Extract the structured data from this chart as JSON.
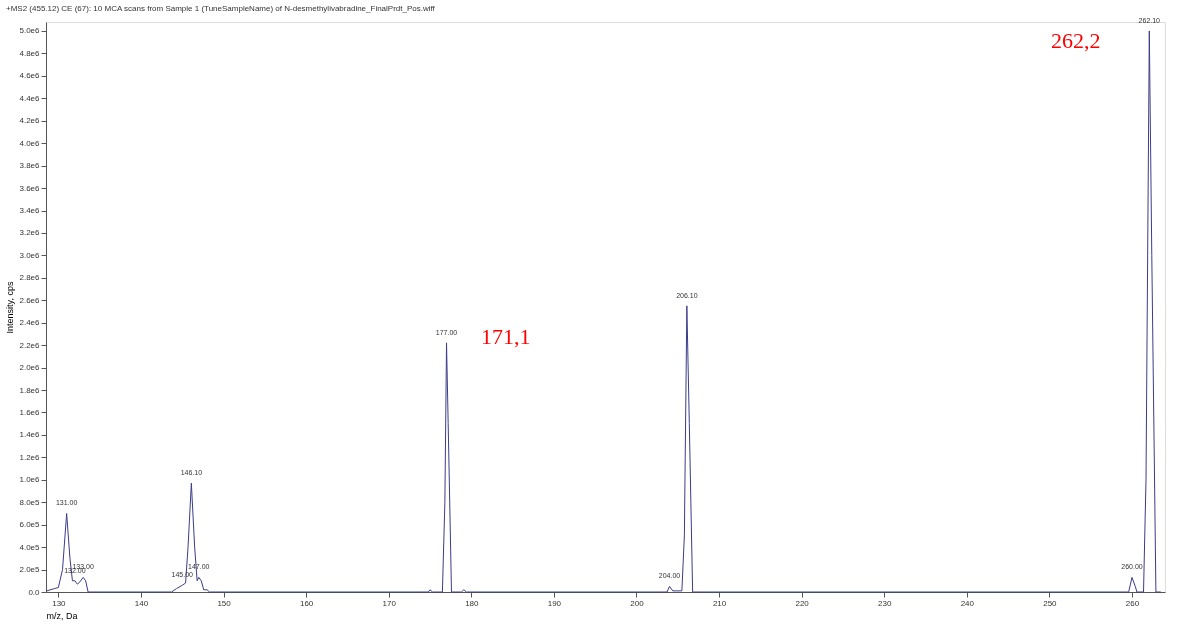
{
  "chart_data": {
    "type": "line",
    "title": "+MS2 (455.12) CE (67): 10 MCA scans from Sample 1 (TuneSampleName) of N-desmethylivabradine_FinalPrdt_Pos.wiff",
    "xlabel": "m/z, Da",
    "ylabel": "Intensity, cps",
    "x": [
      128.6,
      129.5,
      130.0,
      130.5,
      131.0,
      131.4,
      131.7,
      132.0,
      132.3,
      132.6,
      133.0,
      133.3,
      133.6,
      143.7,
      144.3,
      145.0,
      145.4,
      145.7,
      146.1,
      146.5,
      146.8,
      147.0,
      147.3,
      147.6,
      148.0,
      148.3,
      174.8,
      175.0,
      175.3,
      176.5,
      176.8,
      177.0,
      177.2,
      177.6,
      178.8,
      179.1,
      179.4,
      203.7,
      204.0,
      204.4,
      205.5,
      205.8,
      206.1,
      206.4,
      206.8,
      259.6,
      260.0,
      260.4,
      260.6,
      261.4,
      261.7,
      262.1,
      262.4,
      262.9,
      263.5
    ],
    "series": [
      {
        "color": "#3c3c8a",
        "values": [
          10000,
          30000,
          40000,
          200000,
          700000,
          300000,
          100000,
          100000,
          70000,
          90000,
          130000,
          100000,
          0,
          0,
          30000,
          60000,
          80000,
          400000,
          970000,
          400000,
          100000,
          130000,
          100000,
          20000,
          20000,
          0,
          0,
          20000,
          0,
          0,
          800000,
          2220000,
          1500000,
          0,
          0,
          20000,
          0,
          0,
          50000,
          10000,
          10000,
          500000,
          2550000,
          1500000,
          0,
          0,
          130000,
          50000,
          0,
          0,
          1000000,
          5000000,
          3000000,
          0,
          0
        ]
      }
    ],
    "xlim": [
      128.5,
      264
    ],
    "xticks": [
      130,
      140,
      150,
      160,
      170,
      180,
      190,
      200,
      210,
      220,
      230,
      240,
      250,
      260
    ],
    "ylim": [
      0,
      5080000
    ],
    "yticks": [
      {
        "value": 0,
        "label": "0.0"
      },
      {
        "value": 200000,
        "label": "2.0e5"
      },
      {
        "value": 400000,
        "label": "4.0e5"
      },
      {
        "value": 600000,
        "label": "6.0e5"
      },
      {
        "value": 800000,
        "label": "8.0e5"
      },
      {
        "value": 1000000,
        "label": "1.0e6"
      },
      {
        "value": 1200000,
        "label": "1.2e6"
      },
      {
        "value": 1400000,
        "label": "1.4e6"
      },
      {
        "value": 1600000,
        "label": "1.6e6"
      },
      {
        "value": 1800000,
        "label": "1.8e6"
      },
      {
        "value": 2000000,
        "label": "2.0e6"
      },
      {
        "value": 2200000,
        "label": "2.2e6"
      },
      {
        "value": 2400000,
        "label": "2.4e6"
      },
      {
        "value": 2600000,
        "label": "2.6e6"
      },
      {
        "value": 2800000,
        "label": "2.8e6"
      },
      {
        "value": 3000000,
        "label": "3.0e6"
      },
      {
        "value": 3200000,
        "label": "3.2e6"
      },
      {
        "value": 3400000,
        "label": "3.4e6"
      },
      {
        "value": 3600000,
        "label": "3.6e6"
      },
      {
        "value": 3800000,
        "label": "3.8e6"
      },
      {
        "value": 4000000,
        "label": "4.0e6"
      },
      {
        "value": 4200000,
        "label": "4.2e6"
      },
      {
        "value": 4400000,
        "label": "4.4e6"
      },
      {
        "value": 4600000,
        "label": "4.6e6"
      },
      {
        "value": 4800000,
        "label": "4.8e6"
      },
      {
        "value": 5000000,
        "label": "5.0e6"
      }
    ],
    "grid": false,
    "marker": "none",
    "line_style": "solid",
    "annotations": [
      {
        "text": "131.00",
        "x": 131.0,
        "y": 700000
      },
      {
        "text": "132.00",
        "x": 132.0,
        "y": 100000
      },
      {
        "text": "133.00",
        "x": 133.0,
        "y": 130000
      },
      {
        "text": "145.00",
        "x": 145.0,
        "y": 60000
      },
      {
        "text": "146.10",
        "x": 146.1,
        "y": 970000
      },
      {
        "text": "147.00",
        "x": 147.0,
        "y": 130000
      },
      {
        "text": "177.00",
        "x": 177.0,
        "y": 2220000
      },
      {
        "text": "204.00",
        "x": 204.0,
        "y": 50000
      },
      {
        "text": "206.10",
        "x": 206.1,
        "y": 2550000
      },
      {
        "text": "260.00",
        "x": 260.0,
        "y": 130000
      },
      {
        "text": "262.10",
        "x": 262.1,
        "y": 5000000
      },
      "171,1",
      "262,2"
    ]
  }
}
